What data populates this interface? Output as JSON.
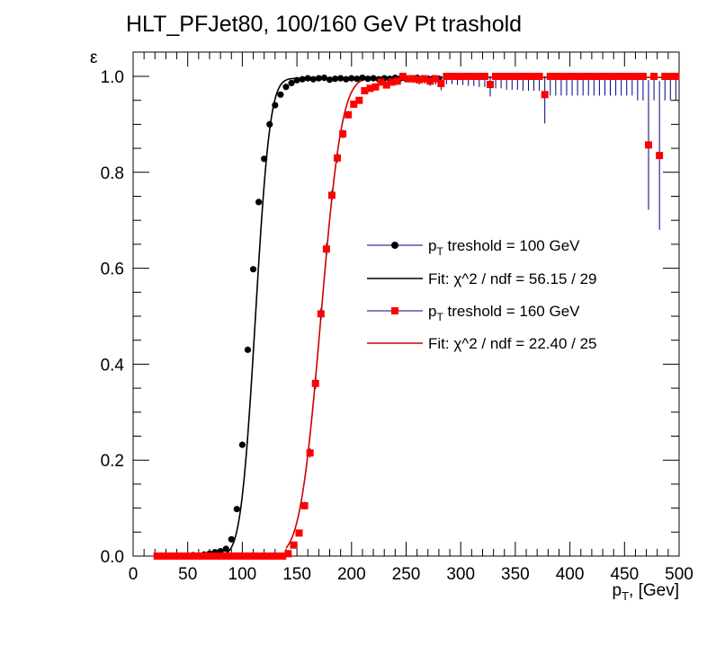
{
  "chart_data": {
    "type": "scatter",
    "title": "HLT_PFJet80, 100/160 GeV Pt trashold",
    "xlabel": "p_T, [Gev]",
    "ylabel": "ε",
    "xlim": [
      0,
      500
    ],
    "ylim": [
      0,
      1.05
    ],
    "x_ticks": [
      "0",
      "50",
      "100",
      "150",
      "200",
      "250",
      "300",
      "350",
      "400",
      "450",
      "500"
    ],
    "y_ticks": [
      "0.0",
      "0.2",
      "0.4",
      "0.6",
      "0.8",
      "1.0"
    ],
    "legend_placement": "center-right",
    "series": [
      {
        "name": "p_T treshold = 100 GeV",
        "marker": "circle",
        "color": "#000000",
        "error_color": "#000080",
        "x": [
          25,
          30,
          35,
          40,
          45,
          50,
          55,
          60,
          65,
          70,
          75,
          80,
          85,
          90,
          95,
          100,
          105,
          110,
          115,
          120,
          125,
          130,
          135,
          140,
          145,
          150,
          155,
          160,
          165,
          170,
          175,
          180,
          185,
          190,
          195,
          200,
          205,
          210,
          215,
          220,
          225,
          230,
          235,
          240,
          245,
          250,
          255,
          260,
          265,
          270,
          275,
          280
        ],
        "y": [
          0.0,
          0.0,
          0.0,
          0.0,
          0.0,
          0.0,
          0.002,
          0.0,
          0.003,
          0.005,
          0.008,
          0.01,
          0.015,
          0.035,
          0.098,
          0.232,
          0.43,
          0.598,
          0.738,
          0.828,
          0.9,
          0.94,
          0.962,
          0.978,
          0.986,
          0.992,
          0.994,
          0.996,
          0.994,
          0.996,
          0.997,
          0.993,
          0.995,
          0.996,
          0.994,
          0.996,
          0.995,
          0.997,
          0.995,
          0.996,
          0.994,
          0.996,
          0.995,
          0.997,
          0.996,
          0.995,
          0.996,
          0.997,
          0.996,
          0.995,
          0.996,
          0.995
        ]
      },
      {
        "name": "Fit: χ^2 / ndf = 56.15 / 29",
        "line": "fit",
        "color": "#000000",
        "fit_function": "plateau * 0.5 * (1 + erf((x - mu) / (sqrt(2) * sigma)))",
        "parameters": {
          "mu": 112,
          "sigma": 10.5,
          "plateau": 0.996
        },
        "x_range": [
          85,
          280
        ]
      },
      {
        "name": "p_T treshold = 160 GeV",
        "marker": "square",
        "color": "#ff0000",
        "error_color": "#000080",
        "x": [
          22,
          27,
          32,
          37,
          42,
          47,
          52,
          57,
          62,
          67,
          72,
          77,
          82,
          87,
          92,
          97,
          102,
          107,
          112,
          117,
          122,
          127,
          132,
          137,
          142,
          147,
          152,
          157,
          162,
          167,
          172,
          177,
          182,
          187,
          192,
          197,
          202,
          207,
          212,
          217,
          222,
          227,
          232,
          237,
          242,
          247,
          252,
          257,
          262,
          267,
          272,
          277,
          282,
          287,
          292,
          297,
          302,
          307,
          312,
          317,
          322,
          327,
          332,
          337,
          342,
          347,
          352,
          357,
          362,
          367,
          372,
          377,
          382,
          387,
          392,
          397,
          402,
          407,
          412,
          417,
          422,
          427,
          432,
          437,
          442,
          447,
          452,
          457,
          462,
          467,
          472,
          477,
          482,
          487,
          492,
          497
        ],
        "y": [
          0.0,
          0.0,
          0.0,
          0.0,
          0.0,
          0.0,
          0.0,
          0.0,
          0.0,
          0.0,
          0.0,
          0.0,
          0.0,
          0.0,
          0.0,
          0.0,
          0.0,
          0.0,
          0.0,
          0.0,
          0.0,
          0.0,
          0.0,
          0.0,
          0.005,
          0.023,
          0.048,
          0.105,
          0.215,
          0.36,
          0.505,
          0.64,
          0.752,
          0.83,
          0.88,
          0.92,
          0.942,
          0.95,
          0.97,
          0.975,
          0.978,
          0.988,
          0.982,
          0.988,
          0.99,
          1.0,
          0.995,
          0.995,
          0.993,
          0.995,
          0.99,
          0.995,
          0.985,
          1.0,
          1.0,
          1.0,
          1.0,
          1.0,
          1.0,
          1.0,
          1.0,
          0.983,
          1.0,
          1.0,
          1.0,
          1.0,
          1.0,
          1.0,
          1.0,
          1.0,
          1.0,
          0.962,
          1.0,
          1.0,
          1.0,
          1.0,
          1.0,
          1.0,
          1.0,
          1.0,
          1.0,
          1.0,
          1.0,
          1.0,
          1.0,
          1.0,
          1.0,
          1.0,
          1.0,
          1.0,
          0.857,
          1.0,
          0.835,
          1.0,
          1.0,
          1.0
        ],
        "y_err": [
          0,
          0,
          0,
          0,
          0,
          0,
          0,
          0,
          0,
          0,
          0,
          0,
          0,
          0,
          0,
          0,
          0,
          0,
          0,
          0,
          0,
          0,
          0,
          0,
          0.002,
          0.004,
          0.006,
          0.008,
          0.01,
          0.012,
          0.012,
          0.012,
          0.011,
          0.01,
          0.009,
          0.008,
          0.007,
          0.007,
          0.006,
          0.006,
          0.006,
          0.006,
          0.007,
          0.007,
          0.008,
          0.008,
          0.008,
          0.009,
          0.01,
          0.01,
          0.01,
          0.012,
          0.014,
          0.016,
          0.016,
          0.018,
          0.018,
          0.02,
          0.02,
          0.022,
          0.022,
          0.025,
          0.025,
          0.025,
          0.028,
          0.028,
          0.028,
          0.03,
          0.03,
          0.03,
          0.03,
          0.06,
          0.04,
          0.04,
          0.04,
          0.04,
          0.04,
          0.04,
          0.04,
          0.04,
          0.04,
          0.04,
          0.04,
          0.04,
          0.04,
          0.04,
          0.04,
          0.04,
          0.05,
          0.05,
          0.135,
          0.05,
          0.155,
          0.05,
          0.05,
          0.05
        ]
      },
      {
        "name": "Fit: χ^2 / ndf = 22.40 / 25",
        "line": "fit",
        "color": "#cc0000",
        "fit_function": "plateau * 0.5 * (1 + erf((x - mu) / (sqrt(2) * sigma)))",
        "parameters": {
          "mu": 172,
          "sigma": 15,
          "plateau": 0.998
        },
        "x_range": [
          140,
          500
        ]
      }
    ]
  }
}
